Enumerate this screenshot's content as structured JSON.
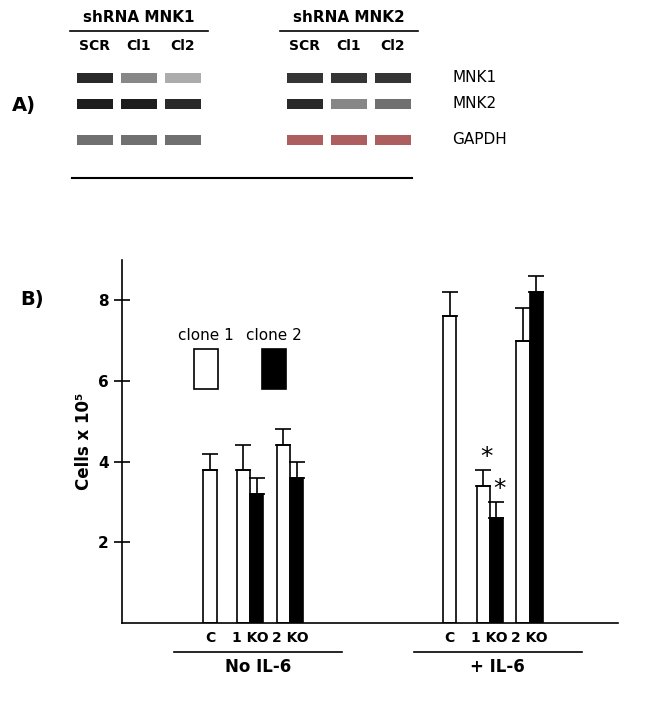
{
  "blot": {
    "label": "A)",
    "rows": [
      "MNK1",
      "MNK2",
      "GAPDH"
    ],
    "groups": [
      {
        "title": "shRNA MNK1",
        "lanes": [
          "SCR",
          "Cl1",
          "Cl2"
        ],
        "intensity": [
          [
            0.9,
            0.5,
            0.35
          ],
          [
            0.95,
            0.95,
            0.9
          ],
          [
            0.6,
            0.6,
            0.6
          ]
        ]
      },
      {
        "title": "shRNA MNK2",
        "lanes": [
          "SCR",
          "Cl1",
          "Cl2"
        ],
        "intensity": [
          [
            0.85,
            0.85,
            0.85
          ],
          [
            0.9,
            0.5,
            0.6
          ],
          [
            0.7,
            0.7,
            0.7
          ]
        ]
      }
    ]
  },
  "chart_data": {
    "type": "bar",
    "label": "B)",
    "y_label": "Cells x 10⁵",
    "groups": [
      {
        "label": "No IL-6",
        "categories": [
          "C",
          "1 KO",
          "2 KO"
        ]
      },
      {
        "label": "+ IL-6",
        "categories": [
          "C",
          "1 KO",
          "2 KO"
        ]
      }
    ],
    "series": [
      {
        "name": "clone 1",
        "color": "#ffffff",
        "values": [
          3.8,
          3.8,
          4.4,
          7.6,
          3.4,
          7.0
        ],
        "errors": [
          0.4,
          0.6,
          0.4,
          0.6,
          0.4,
          0.8
        ]
      },
      {
        "name": "clone 2",
        "color": "#000000",
        "values": [
          null,
          3.2,
          3.6,
          null,
          2.6,
          8.2
        ],
        "errors": [
          null,
          0.4,
          0.4,
          null,
          0.4,
          0.4
        ]
      }
    ],
    "ylim": [
      0,
      9
    ],
    "yticks": [
      2,
      4,
      6,
      8
    ],
    "annotations": [
      {
        "text": "*",
        "group": "+ IL-6",
        "category": "1 KO",
        "series": "clone 1"
      },
      {
        "text": "*",
        "group": "+ IL-6",
        "category": "1 KO",
        "series": "clone 2"
      }
    ]
  }
}
